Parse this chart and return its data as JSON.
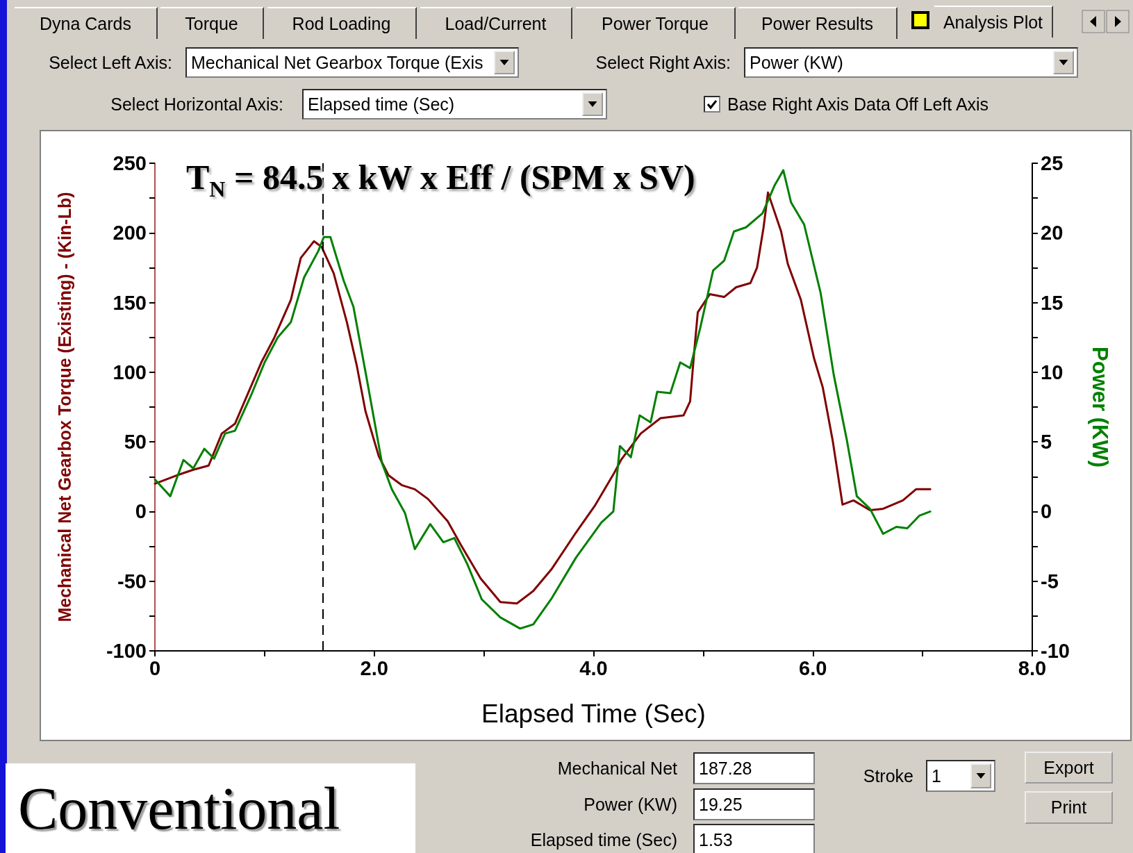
{
  "chart_data": {
    "type": "line",
    "title": "T$_{N}$ = 84.5 x kW x Eff / (SPM x SV)",
    "xlabel": "Elapsed Time (Sec)",
    "ylabel": "Mechanical Net Gearbox Torque (Existing) - (Kin-Lb)",
    "y2label": "Power (KW)",
    "xlim": [
      0,
      8
    ],
    "xticks": [
      0,
      {
        "value": 1,
        "label": null
      },
      {
        "value": 2,
        "label": "2.0"
      },
      {
        "value": 3,
        "label": null
      },
      {
        "value": 4,
        "label": "4.0"
      },
      {
        "value": 5,
        "label": null
      },
      {
        "value": 6,
        "label": "6.0"
      },
      {
        "value": 7,
        "label": null
      },
      {
        "value": 8,
        "label": "8.0"
      }
    ],
    "ylim": [
      -100,
      250
    ],
    "yticks": [
      -100,
      {
        "value": -75,
        "label": null
      },
      -50,
      {
        "value": -25,
        "label": null
      },
      0,
      {
        "value": 25,
        "label": null
      },
      50,
      {
        "value": 75,
        "label": null
      },
      100,
      {
        "value": 125,
        "label": null
      },
      150,
      {
        "value": 175,
        "label": null
      },
      200,
      {
        "value": 225,
        "label": null
      },
      250
    ],
    "y2lim": [
      -10,
      25
    ],
    "y2ticks": [
      -10,
      {
        "value": -7.5,
        "label": null
      },
      -5,
      {
        "value": -2.5,
        "label": null
      },
      0,
      {
        "value": 2.5,
        "label": null
      },
      5,
      {
        "value": 7.5,
        "label": null
      },
      10,
      {
        "value": 12.5,
        "label": null
      },
      15,
      {
        "value": 17.5,
        "label": null
      },
      20,
      {
        "value": 22.5,
        "label": null
      },
      25
    ],
    "grid": false,
    "marker": "none",
    "line_style": "solid",
    "series": [
      {
        "color": "#800000",
        "x": [
          0,
          0.2,
          0.35,
          0.49,
          0.61,
          0.73,
          0.85,
          0.97,
          1.09,
          1.24,
          1.33,
          1.45,
          1.52,
          1.63,
          1.75,
          1.84,
          1.92,
          2.04,
          2.13,
          2.25,
          2.37,
          2.49,
          2.67,
          2.79,
          2.97,
          3.15,
          3.3,
          3.45,
          3.62,
          3.84,
          4.01,
          4.19,
          4.25,
          4.43,
          4.61,
          4.82,
          4.88,
          4.92,
          4.95,
          5.06,
          5.19,
          5.3,
          5.43,
          5.49,
          5.55,
          5.59,
          5.71,
          5.77,
          5.89,
          6.01,
          6.09,
          6.18,
          6.27,
          6.37,
          6.52,
          6.64,
          6.82,
          6.94,
          7.07
        ],
        "values": [
          20,
          26,
          30,
          33,
          56,
          63,
          85,
          107,
          125,
          152,
          182,
          194,
          190,
          171,
          136,
          105,
          72,
          40,
          26,
          19,
          16,
          9,
          -7,
          -24,
          -48,
          -65,
          -66,
          -57,
          -41,
          -15,
          4,
          28,
          37,
          56,
          67,
          69,
          79,
          117,
          143,
          156,
          154,
          161,
          164,
          175,
          204,
          229,
          201,
          178,
          152,
          110,
          89,
          51,
          5,
          8,
          1,
          2,
          8,
          16,
          16
        ]
      },
      {
        "color": "#008000",
        "axis": "y2",
        "x": [
          0,
          0.14,
          0.26,
          0.35,
          0.45,
          0.54,
          0.64,
          0.73,
          0.88,
          1,
          1.12,
          1.24,
          1.36,
          1.49,
          1.54,
          1.6,
          1.72,
          1.81,
          1.93,
          2.07,
          2.16,
          2.28,
          2.37,
          2.51,
          2.63,
          2.73,
          2.85,
          2.98,
          3.15,
          3.33,
          3.45,
          3.62,
          3.84,
          4.07,
          4.18,
          4.24,
          4.34,
          4.42,
          4.52,
          4.58,
          4.7,
          4.79,
          4.88,
          4.97,
          5.09,
          5.19,
          5.28,
          5.39,
          5.54,
          5.65,
          5.73,
          5.8,
          5.92,
          6.07,
          6.19,
          6.31,
          6.4,
          6.52,
          6.64,
          6.76,
          6.86,
          6.97,
          7.07
        ],
        "values": [
          2.3,
          1.1,
          3.7,
          3.1,
          4.5,
          3.8,
          5.6,
          5.8,
          8.4,
          10.7,
          12.5,
          13.6,
          16.8,
          18.7,
          19.7,
          19.7,
          16.6,
          14.7,
          9.6,
          3.5,
          1.6,
          -0.1,
          -2.7,
          -0.9,
          -2.2,
          -1.9,
          -3.8,
          -6.3,
          -7.6,
          -8.4,
          -8.1,
          -6.2,
          -3.3,
          -0.8,
          0,
          4.7,
          3.9,
          6.9,
          6.4,
          8.6,
          8.5,
          10.7,
          10.3,
          13.1,
          17.3,
          18,
          20.1,
          20.4,
          21.4,
          23.4,
          24.5,
          22.2,
          20.6,
          15.7,
          9.8,
          5.1,
          1.1,
          0.2,
          -1.6,
          -1.1,
          -1.2,
          -0.3,
          0
        ]
      }
    ],
    "ref_lines": [
      {
        "axis": "x",
        "value": 1.53,
        "color": "#000000",
        "line_style": "dashed"
      }
    ],
    "annotations": [
      "Dyna Cards",
      "Torque",
      "Rod Loading",
      "Load/Current",
      "Power Torque",
      "Power Results",
      "Analysis Plot",
      "Select Left Axis:",
      "Mechanical Net Gearbox Torque (Exis",
      "Select Right Axis:",
      "Power (KW)",
      "Select Horizontal Axis:",
      "Elapsed time (Sec)",
      "Base Right Axis Data Off Left Axis",
      "Mechanical Net",
      "187.28",
      "Power (KW)",
      "19.25",
      "Elapsed time (Sec)",
      "1.53",
      "Stroke",
      "1",
      "Export",
      "Print",
      "Conventional"
    ]
  }
}
